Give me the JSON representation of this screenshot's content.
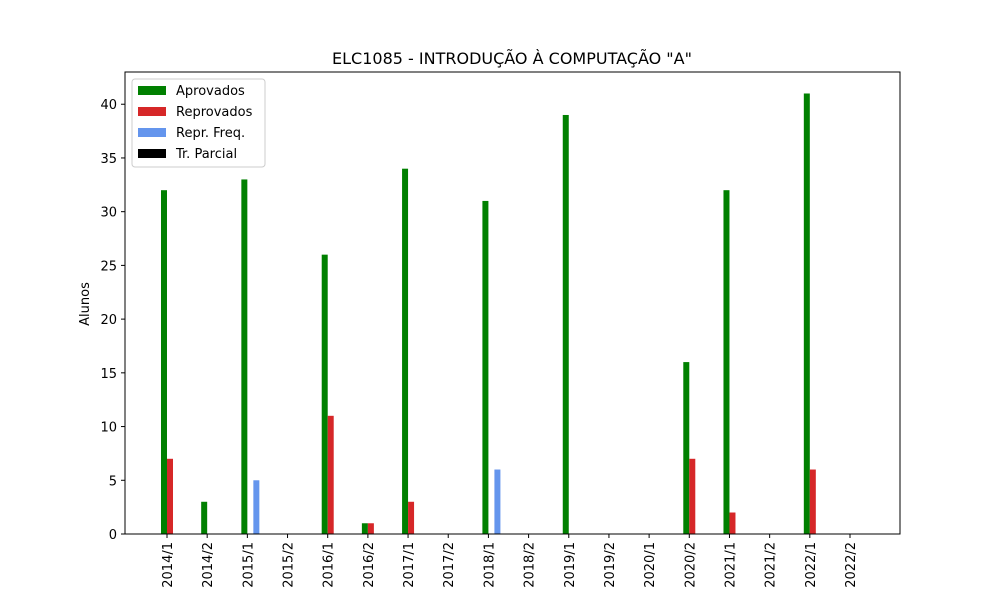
{
  "chart_data": {
    "type": "bar",
    "title": "ELC1085 - INTRODUÇÃO À COMPUTAÇÃO \"A\"",
    "xlabel": "",
    "ylabel": "Alunos",
    "ylim": [
      0,
      43
    ],
    "yticks": [
      0,
      5,
      10,
      15,
      20,
      25,
      30,
      35,
      40
    ],
    "categories": [
      "2014/1",
      "2014/2",
      "2015/1",
      "2015/2",
      "2016/1",
      "2016/2",
      "2017/1",
      "2017/2",
      "2018/1",
      "2018/2",
      "2019/1",
      "2019/2",
      "2020/1",
      "2020/2",
      "2021/1",
      "2021/2",
      "2022/1",
      "2022/2"
    ],
    "series": [
      {
        "name": "Aprovados",
        "color": "#008000",
        "values": [
          32,
          3,
          33,
          0,
          26,
          1,
          34,
          0,
          31,
          0,
          39,
          0,
          0,
          16,
          32,
          0,
          41,
          0
        ]
      },
      {
        "name": "Reprovados",
        "color": "#d62728",
        "values": [
          7,
          0,
          0,
          0,
          11,
          1,
          3,
          0,
          0,
          0,
          0,
          0,
          0,
          7,
          2,
          0,
          6,
          0
        ]
      },
      {
        "name": "Repr. Freq.",
        "color": "#6495ed",
        "values": [
          0,
          0,
          5,
          0,
          0,
          0,
          0,
          0,
          6,
          0,
          0,
          0,
          0,
          0,
          0,
          0,
          0,
          0
        ]
      },
      {
        "name": "Tr. Parcial",
        "color": "#000000",
        "values": [
          0,
          0,
          0,
          0,
          0,
          0,
          0,
          0,
          0,
          0,
          0,
          0,
          0,
          0,
          0,
          0,
          0,
          0
        ]
      }
    ],
    "legend_position": "top-left",
    "grid": false
  }
}
